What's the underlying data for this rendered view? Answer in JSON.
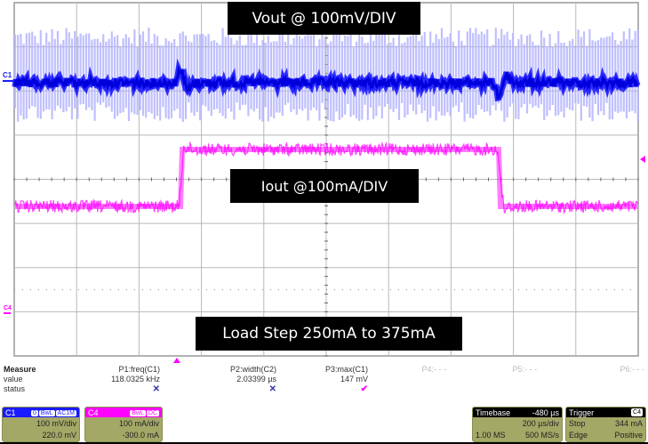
{
  "chart_data": {
    "type": "line",
    "title": "Load Step 250mA to 375mA",
    "annotations": [
      "Vout @ 100mV/DIV",
      "Iout @100mA/DIV",
      "Load Step 250mA to 375mA"
    ],
    "xlabel": "Time (200 µs/div)",
    "ylabel": "",
    "grid": {
      "x_divisions": 10,
      "y_divisions": 8,
      "on": true
    },
    "x": [
      0,
      2.6,
      2.7,
      7.7,
      7.8,
      10
    ],
    "x_units": "div",
    "series": [
      {
        "name": "C1 Vout (AC, 100 mV/div)",
        "color": "#1a1aff",
        "values": [
          0,
          0,
          0.35,
          0,
          -0.35,
          0
        ],
        "note": "AC ripple approx ±0.9 div envelope; positive spike at load release, negative spike at load step"
      },
      {
        "name": "C4 Iout (DC, 100 mA/div)",
        "color": "#ff00ff",
        "values": [
          250,
          250,
          375,
          375,
          250,
          250
        ],
        "units": "mA"
      }
    ],
    "ylim": [
      -4,
      4
    ]
  },
  "scope": {
    "labels": {
      "vout": "Vout @ 100mV/DIV",
      "iout": "Iout @100mA/DIV",
      "step": "Load Step 250mA to 375mA"
    },
    "markers": {
      "c1": "C1",
      "c4": "C4"
    },
    "colors": {
      "c1": "#1a1aff",
      "c1_envelope": "#b4b4ff",
      "c4": "#ff00ff",
      "grid": "#b8b8b8"
    }
  },
  "measure": {
    "header": "Measure",
    "row_value": "value",
    "row_status": "status",
    "params": [
      {
        "name": "P1:freq(C1)",
        "value": "118.0325 kHz",
        "status": "✕"
      },
      {
        "name": "P2:width(C2)",
        "value": "2.03399 µs",
        "status": "✕"
      },
      {
        "name": "P3:max(C1)",
        "value": "147 mV",
        "status": "✔"
      },
      {
        "name": "P4:- - -",
        "value": "",
        "status": ""
      },
      {
        "name": "P5:- - -",
        "value": "",
        "status": ""
      },
      {
        "name": "P6:- - -",
        "value": "",
        "status": ""
      }
    ]
  },
  "channels": [
    {
      "id": "C1",
      "flags": [
        "0",
        "BwL",
        "AC1M"
      ],
      "scale": "100 mV/div",
      "offset": "220.0 mV"
    },
    {
      "id": "C4",
      "flags": [
        "BwL",
        "DC"
      ],
      "scale": "100 mA/div",
      "offset": "-300.0 mA"
    }
  ],
  "timebase": {
    "title": "Timebase",
    "delay": "-480 µs",
    "scale": "200 µs/div",
    "samples": "1.00 MS",
    "rate": "500 MS/s"
  },
  "trigger": {
    "title": "Trigger",
    "source": "C4",
    "mode": "Stop",
    "level": "344 mA",
    "type": "Edge",
    "slope": "Positive"
  }
}
